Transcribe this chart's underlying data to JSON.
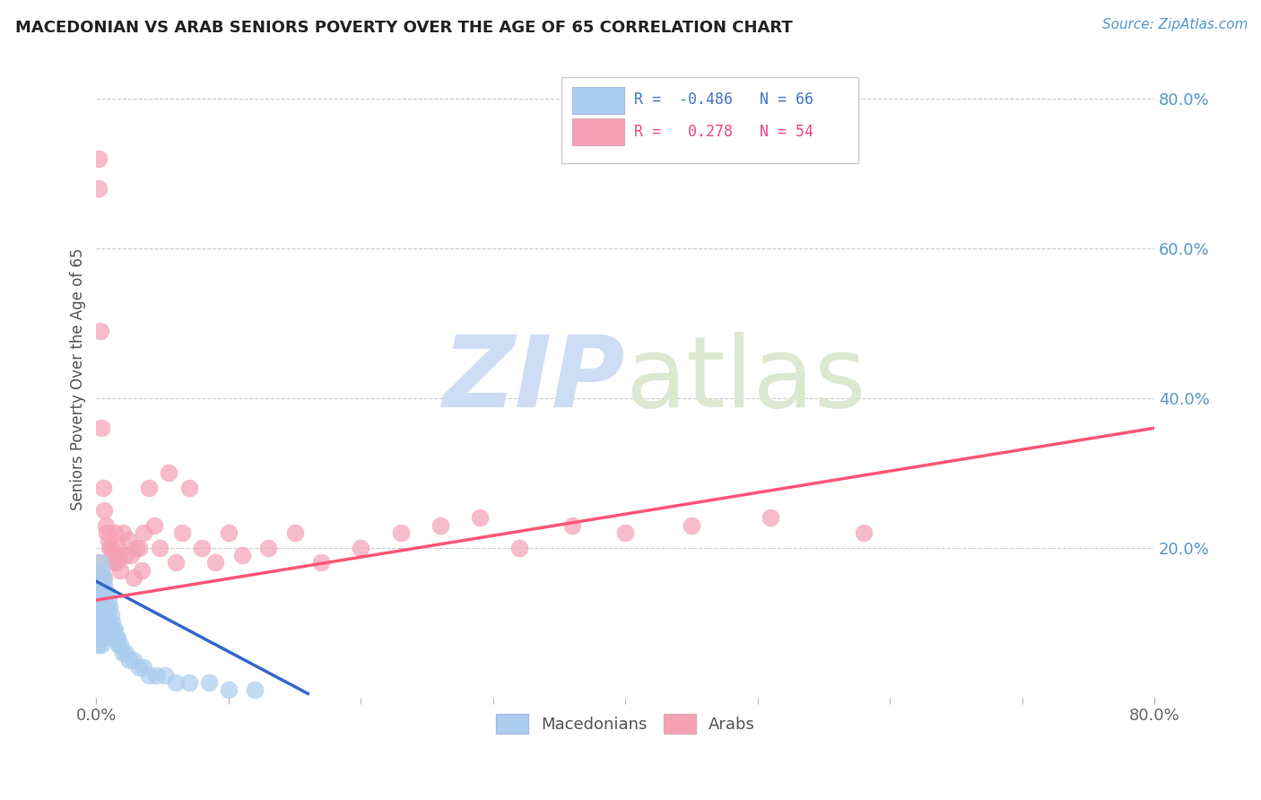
{
  "title": "MACEDONIAN VS ARAB SENIORS POVERTY OVER THE AGE OF 65 CORRELATION CHART",
  "source": "Source: ZipAtlas.com",
  "ylabel": "Seniors Poverty Over the Age of 65",
  "xlim": [
    0.0,
    0.8
  ],
  "ylim": [
    0.0,
    0.85
  ],
  "ytick_labels_right": [
    "20.0%",
    "40.0%",
    "60.0%",
    "80.0%"
  ],
  "ytick_positions_right": [
    0.2,
    0.4,
    0.6,
    0.8
  ],
  "macedonian_R": -0.486,
  "macedonian_N": 66,
  "arab_R": 0.278,
  "arab_N": 54,
  "macedonian_color": "#aaccee",
  "arab_color": "#f5a0b5",
  "macedonian_line_color": "#3366cc",
  "arab_line_color": "#ff5577",
  "background_color": "#ffffff",
  "grid_color": "#cccccc",
  "title_color": "#222222",
  "watermark_color": "#cdddf5",
  "macedonian_scatter": {
    "x": [
      0.001,
      0.001,
      0.001,
      0.001,
      0.001,
      0.002,
      0.002,
      0.002,
      0.002,
      0.002,
      0.002,
      0.003,
      0.003,
      0.003,
      0.003,
      0.003,
      0.003,
      0.004,
      0.004,
      0.004,
      0.004,
      0.004,
      0.004,
      0.004,
      0.005,
      0.005,
      0.005,
      0.005,
      0.005,
      0.006,
      0.006,
      0.006,
      0.006,
      0.007,
      0.007,
      0.007,
      0.008,
      0.008,
      0.008,
      0.009,
      0.009,
      0.01,
      0.01,
      0.011,
      0.011,
      0.012,
      0.013,
      0.014,
      0.015,
      0.016,
      0.017,
      0.018,
      0.02,
      0.022,
      0.025,
      0.028,
      0.032,
      0.036,
      0.04,
      0.045,
      0.052,
      0.06,
      0.07,
      0.085,
      0.1,
      0.12
    ],
    "y": [
      0.12,
      0.1,
      0.09,
      0.08,
      0.07,
      0.15,
      0.13,
      0.11,
      0.1,
      0.09,
      0.08,
      0.18,
      0.15,
      0.13,
      0.11,
      0.1,
      0.08,
      0.17,
      0.15,
      0.13,
      0.11,
      0.09,
      0.08,
      0.07,
      0.16,
      0.14,
      0.12,
      0.1,
      0.08,
      0.15,
      0.13,
      0.11,
      0.09,
      0.14,
      0.12,
      0.1,
      0.14,
      0.12,
      0.09,
      0.13,
      0.1,
      0.12,
      0.09,
      0.11,
      0.08,
      0.1,
      0.09,
      0.09,
      0.08,
      0.08,
      0.07,
      0.07,
      0.06,
      0.06,
      0.05,
      0.05,
      0.04,
      0.04,
      0.03,
      0.03,
      0.03,
      0.02,
      0.02,
      0.02,
      0.01,
      0.01
    ]
  },
  "arab_scatter": {
    "x": [
      0.001,
      0.002,
      0.002,
      0.003,
      0.003,
      0.004,
      0.005,
      0.006,
      0.006,
      0.007,
      0.008,
      0.009,
      0.01,
      0.011,
      0.012,
      0.013,
      0.014,
      0.015,
      0.016,
      0.017,
      0.018,
      0.02,
      0.022,
      0.024,
      0.026,
      0.028,
      0.03,
      0.032,
      0.034,
      0.036,
      0.04,
      0.044,
      0.048,
      0.055,
      0.06,
      0.065,
      0.07,
      0.08,
      0.09,
      0.1,
      0.11,
      0.13,
      0.15,
      0.17,
      0.2,
      0.23,
      0.26,
      0.29,
      0.32,
      0.36,
      0.4,
      0.45,
      0.51,
      0.58
    ],
    "y": [
      0.18,
      0.72,
      0.68,
      0.49,
      0.16,
      0.36,
      0.28,
      0.25,
      0.16,
      0.23,
      0.22,
      0.21,
      0.2,
      0.2,
      0.19,
      0.18,
      0.22,
      0.18,
      0.2,
      0.19,
      0.17,
      0.22,
      0.19,
      0.21,
      0.19,
      0.16,
      0.2,
      0.2,
      0.17,
      0.22,
      0.28,
      0.23,
      0.2,
      0.3,
      0.18,
      0.22,
      0.28,
      0.2,
      0.18,
      0.22,
      0.19,
      0.2,
      0.22,
      0.18,
      0.2,
      0.22,
      0.23,
      0.24,
      0.2,
      0.23,
      0.22,
      0.23,
      0.24,
      0.22
    ]
  },
  "macedonian_line": {
    "x0": 0.0,
    "x1": 0.16,
    "y0": 0.155,
    "y1": 0.005
  },
  "arab_line": {
    "x0": 0.0,
    "x1": 0.8,
    "y0": 0.13,
    "y1": 0.36
  },
  "legend_text_color_blue": "#4477cc",
  "legend_text_color_pink": "#ee4488"
}
